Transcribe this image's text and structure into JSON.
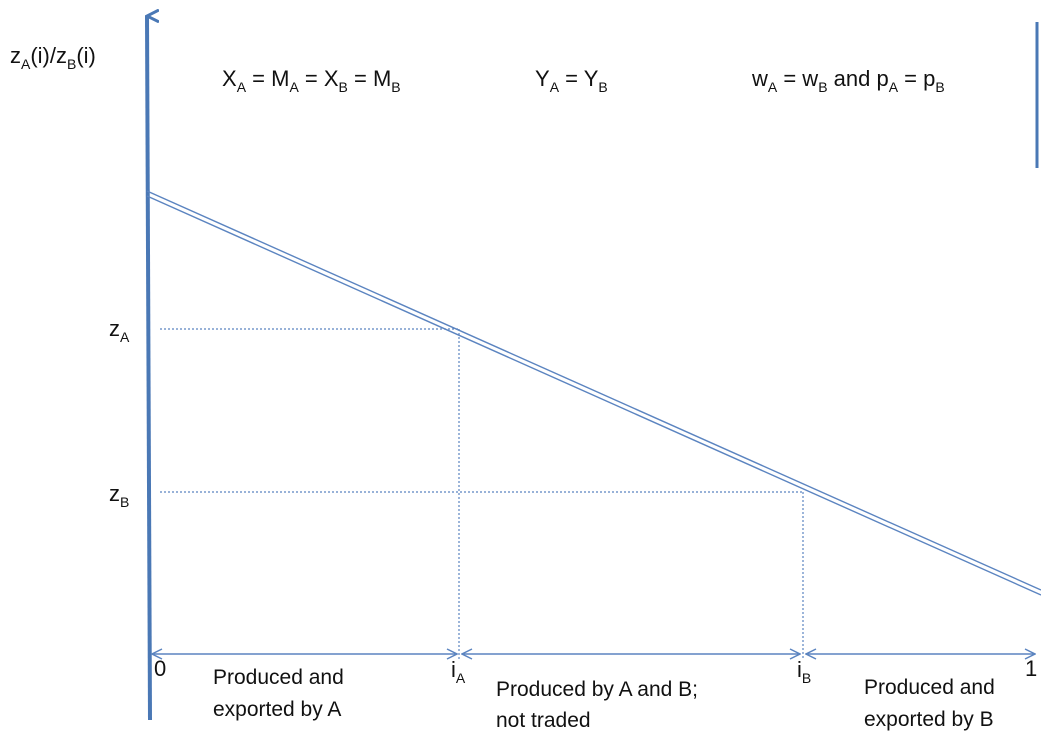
{
  "y_axis_label": {
    "base1": "z",
    "sub1": "A",
    "mid": "(i)/z",
    "sub2": "B",
    "tail": "(i)"
  },
  "equations": [
    {
      "parts": [
        {
          "t": "X"
        },
        {
          "s": "A"
        },
        {
          "t": " = M"
        },
        {
          "s": "A"
        },
        {
          "t": " = X"
        },
        {
          "s": "B"
        },
        {
          "t": " = M"
        },
        {
          "s": "B"
        }
      ]
    },
    {
      "parts": [
        {
          "t": "Y"
        },
        {
          "s": "A"
        },
        {
          "t": " = Y"
        },
        {
          "s": "B"
        }
      ]
    },
    {
      "parts": [
        {
          "t": "w"
        },
        {
          "s": "A"
        },
        {
          "t": " = w"
        },
        {
          "s": "B"
        },
        {
          "t": " and p"
        },
        {
          "s": "A"
        },
        {
          "t": " = p"
        },
        {
          "s": "B"
        }
      ]
    }
  ],
  "y_ticks": {
    "zA": {
      "base": "z",
      "sub": "A"
    },
    "zB": {
      "base": "z",
      "sub": "B"
    }
  },
  "x_ticks": {
    "zero": "0",
    "one": "1",
    "iA": {
      "base": "i",
      "sub": "A"
    },
    "iB": {
      "base": "i",
      "sub": "B"
    }
  },
  "regions": {
    "a": {
      "line1": "Produced and",
      "line2": "exported by A"
    },
    "mid": {
      "line1": "Produced by A and B;",
      "line2": "not traded"
    },
    "b": {
      "line1": "Produced and",
      "line2": "exported by B"
    }
  },
  "colors": {
    "axis": "#4a78b5",
    "line": "#5b84c0",
    "dotted": "#5b84c0",
    "text": "#111111"
  }
}
